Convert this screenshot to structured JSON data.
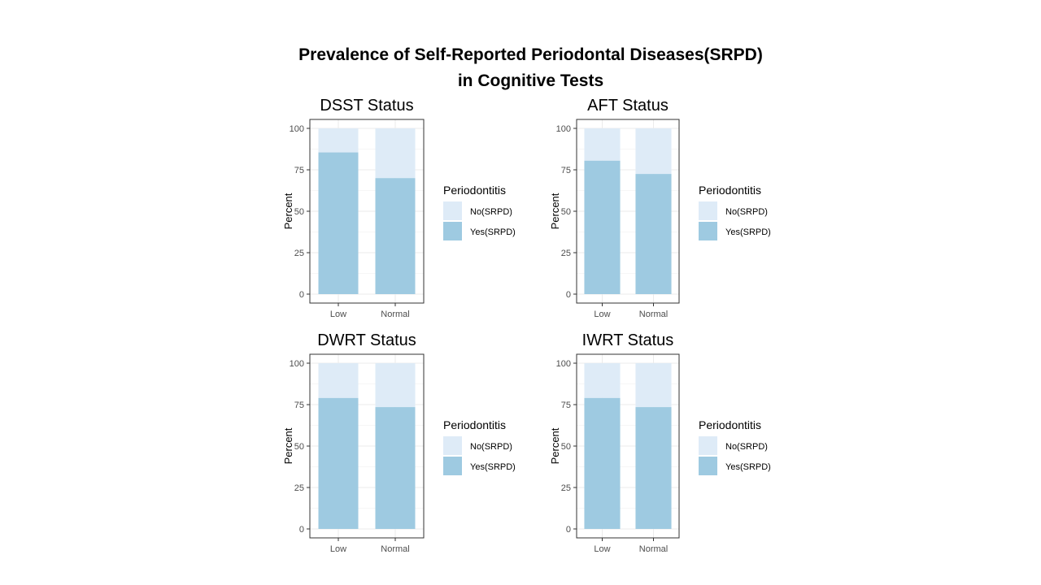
{
  "title": {
    "line1": "Prevalence of Self-Reported Periodontal Diseases(SRPD)",
    "line2": "in Cognitive Tests"
  },
  "colors": {
    "yes": "#9ecae1",
    "no": "#deebf7",
    "grid": "#ebebeb",
    "border": "#333333"
  },
  "chart_data": [
    {
      "type": "bar",
      "stacked": true,
      "title": "DSST Status",
      "categories": [
        "Low",
        "Normal"
      ],
      "series": [
        {
          "name": "No(SRPD)",
          "values": [
            14.5,
            30.0
          ]
        },
        {
          "name": "Yes(SRPD)",
          "values": [
            85.5,
            70.0
          ]
        }
      ],
      "ylabel": "Percent",
      "xlabel": "",
      "ylim": [
        0,
        100
      ],
      "yticks": [
        0,
        25,
        50,
        75,
        100
      ],
      "legend_title": "Periodontitis",
      "legend_position": "right",
      "grid": true
    },
    {
      "type": "bar",
      "stacked": true,
      "title": "AFT Status",
      "categories": [
        "Low",
        "Normal"
      ],
      "series": [
        {
          "name": "No(SRPD)",
          "values": [
            19.5,
            27.5
          ]
        },
        {
          "name": "Yes(SRPD)",
          "values": [
            80.5,
            72.5
          ]
        }
      ],
      "ylabel": "Percent",
      "xlabel": "",
      "ylim": [
        0,
        100
      ],
      "yticks": [
        0,
        25,
        50,
        75,
        100
      ],
      "legend_title": "Periodontitis",
      "legend_position": "right",
      "grid": true
    },
    {
      "type": "bar",
      "stacked": true,
      "title": "DWRT Status",
      "categories": [
        "Low",
        "Normal"
      ],
      "series": [
        {
          "name": "No(SRPD)",
          "values": [
            21.0,
            26.5
          ]
        },
        {
          "name": "Yes(SRPD)",
          "values": [
            79.0,
            73.5
          ]
        }
      ],
      "ylabel": "Percent",
      "xlabel": "",
      "ylim": [
        0,
        100
      ],
      "yticks": [
        0,
        25,
        50,
        75,
        100
      ],
      "legend_title": "Periodontitis",
      "legend_position": "right",
      "grid": true
    },
    {
      "type": "bar",
      "stacked": true,
      "title": "IWRT Status",
      "categories": [
        "Low",
        "Normal"
      ],
      "series": [
        {
          "name": "No(SRPD)",
          "values": [
            21.0,
            26.5
          ]
        },
        {
          "name": "Yes(SRPD)",
          "values": [
            79.0,
            73.5
          ]
        }
      ],
      "ylabel": "Percent",
      "xlabel": "",
      "ylim": [
        0,
        100
      ],
      "yticks": [
        0,
        25,
        50,
        75,
        100
      ],
      "legend_title": "Periodontitis",
      "legend_position": "right",
      "grid": true
    }
  ]
}
